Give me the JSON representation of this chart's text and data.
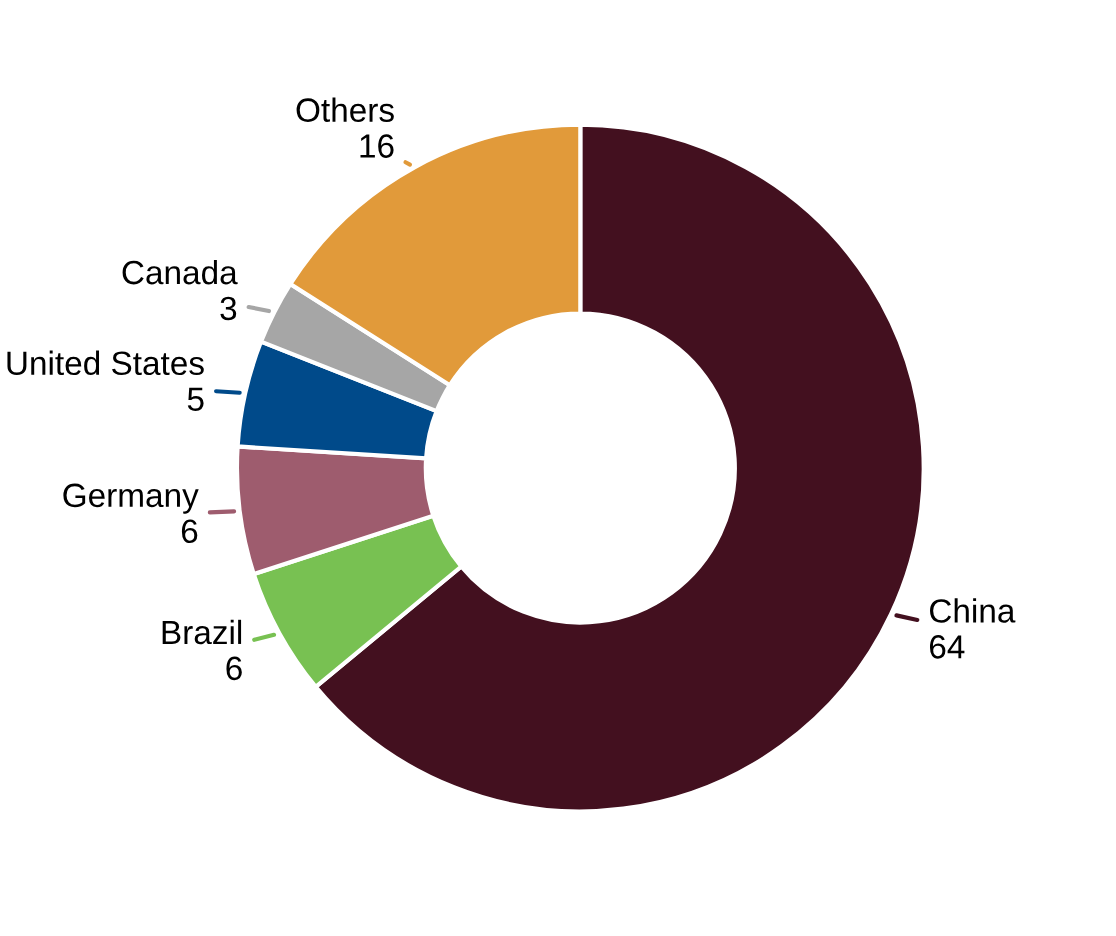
{
  "chart_data": {
    "type": "donut",
    "categories": [
      "China",
      "Brazil",
      "Germany",
      "United States",
      "Canada",
      "Others"
    ],
    "values": [
      64,
      6,
      6,
      5,
      3,
      16
    ],
    "colors": [
      "#43101f",
      "#78c152",
      "#9e5c6e",
      "#004a8a",
      "#a6a6a6",
      "#e19a3a"
    ],
    "data_labels": true
  }
}
